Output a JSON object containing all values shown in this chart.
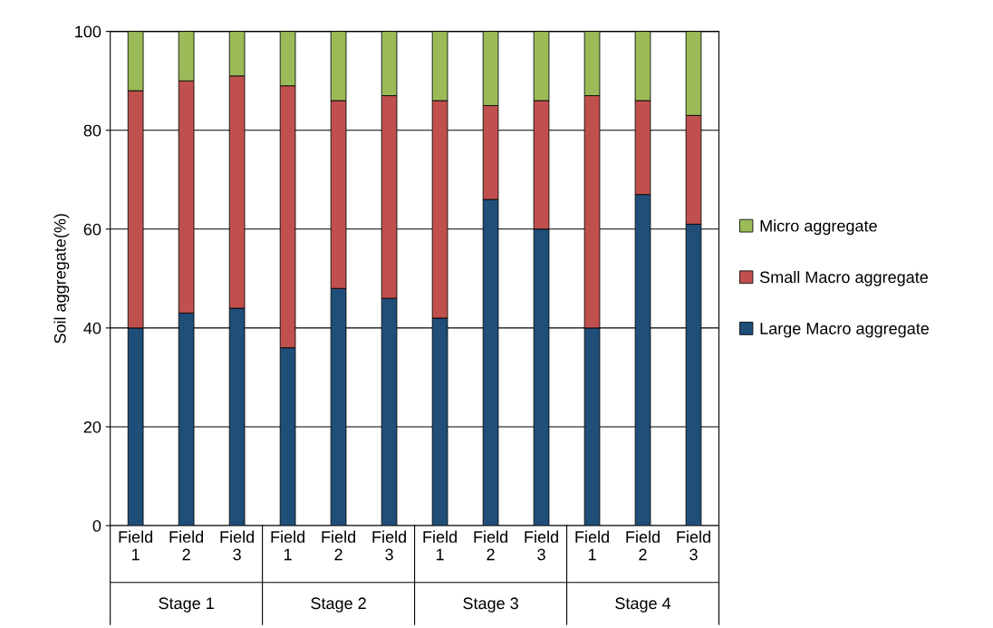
{
  "chart_data": {
    "type": "bar",
    "stacked": true,
    "ylabel": "Soil aggregate(%)",
    "categories": [
      "Field 1",
      "Field 2",
      "Field 3",
      "Field 1",
      "Field 2",
      "Field 3",
      "Field 1",
      "Field 2",
      "Field 3",
      "Field 1",
      "Field 2",
      "Field 3"
    ],
    "series": [
      {
        "name": "Large Macro aggregate",
        "color": "#1f4e79",
        "values": [
          40,
          43,
          44,
          36,
          48,
          46,
          42,
          66,
          60,
          40,
          67,
          61
        ]
      },
      {
        "name": "Small Macro aggregate",
        "color": "#c0504d",
        "values": [
          48,
          47,
          47,
          53,
          38,
          41,
          44,
          19,
          26,
          47,
          19,
          22
        ]
      },
      {
        "name": "Micro aggregate",
        "color": "#9bbb59",
        "values": [
          12,
          10,
          9,
          11,
          14,
          13,
          14,
          15,
          14,
          13,
          14,
          17
        ]
      }
    ],
    "annotations": [
      "Stage 1",
      "Stage 2",
      "Stage 3",
      "Stage 4"
    ],
    "ylim": [
      0,
      100
    ],
    "yticks": [
      0,
      20,
      40,
      60,
      80,
      100
    ],
    "grid": "y",
    "legend": "right"
  }
}
